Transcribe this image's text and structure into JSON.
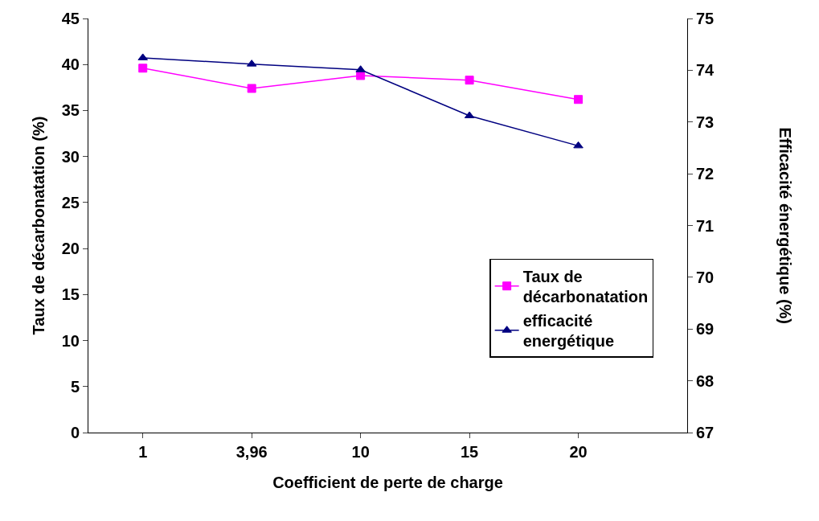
{
  "chart_data": {
    "type": "line",
    "xlabel": "Coefficient de perte de charge",
    "ylabel": "Taux de décarbonatation (%)",
    "y2label": "Efficacité énergétique (%)",
    "categories": [
      "1",
      "3,96",
      "10",
      "15",
      "20"
    ],
    "series": [
      {
        "name": "Taux de décarbonatation",
        "color": "#ff00ff",
        "marker": "square",
        "values": [
          39.6,
          37.4,
          38.8,
          38.3,
          36.2
        ]
      },
      {
        "name": "efficacité energétique",
        "color": "#000080",
        "marker": "triangle",
        "axis": "y2",
        "values": [
          74.24,
          74.12,
          74.01,
          73.12,
          72.54
        ]
      }
    ],
    "ylim": [
      0,
      45
    ],
    "yticks": [
      0,
      5,
      10,
      15,
      20,
      25,
      30,
      35,
      40,
      45
    ],
    "y2lim": [
      67,
      75
    ],
    "y2ticks": [
      67,
      68,
      69,
      70,
      71,
      72,
      73,
      74,
      75
    ],
    "legend": "right",
    "line_style": "solid"
  }
}
